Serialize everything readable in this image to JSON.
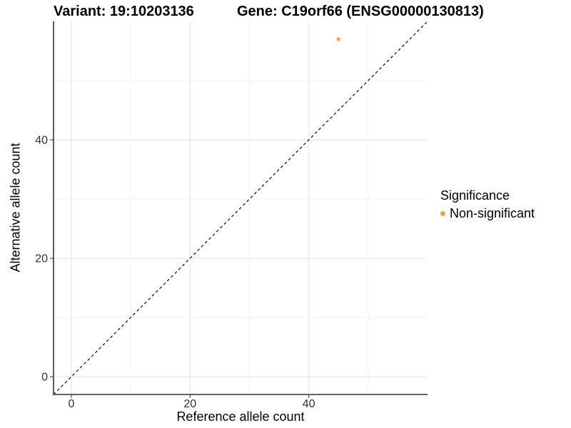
{
  "header": {
    "variant_title": "Variant: 19:10203136",
    "gene_title": "Gene: C19orf66 (ENSG00000130813)"
  },
  "axes": {
    "x_label": "Reference allele count",
    "y_label": "Alternative allele count"
  },
  "legend": {
    "title": "Significance",
    "items": [
      {
        "label": "Non-significant",
        "color": "#F9A03C"
      }
    ]
  },
  "chart_data": {
    "type": "scatter",
    "title": "Variant: 19:10203136 / Gene: C19orf66 (ENSG00000130813)",
    "xlabel": "Reference allele count",
    "ylabel": "Alternative allele count",
    "xlim": [
      -3,
      60
    ],
    "ylim": [
      -3,
      60
    ],
    "x_ticks": [
      0,
      20,
      40
    ],
    "y_ticks": [
      0,
      20,
      40
    ],
    "x_minor_ticks": [
      10,
      30,
      50
    ],
    "y_minor_ticks": [
      10,
      30,
      50
    ],
    "grid": true,
    "legend_position": "right",
    "series": [
      {
        "name": "Non-significant",
        "color": "#F9A03C",
        "points": [
          {
            "x": 45,
            "y": 57
          }
        ]
      }
    ],
    "reference_line": {
      "slope": 1,
      "intercept": 0,
      "style": "dashed",
      "color": "#1A1A1A"
    },
    "style": {
      "grid_major_color": "#E8E8E8",
      "grid_minor_color": "#F3F3F3",
      "axis_color": "#4D4D4D",
      "tick_label_color": "#303030",
      "tick_label_size": 16,
      "point_radius": 2.6
    }
  }
}
